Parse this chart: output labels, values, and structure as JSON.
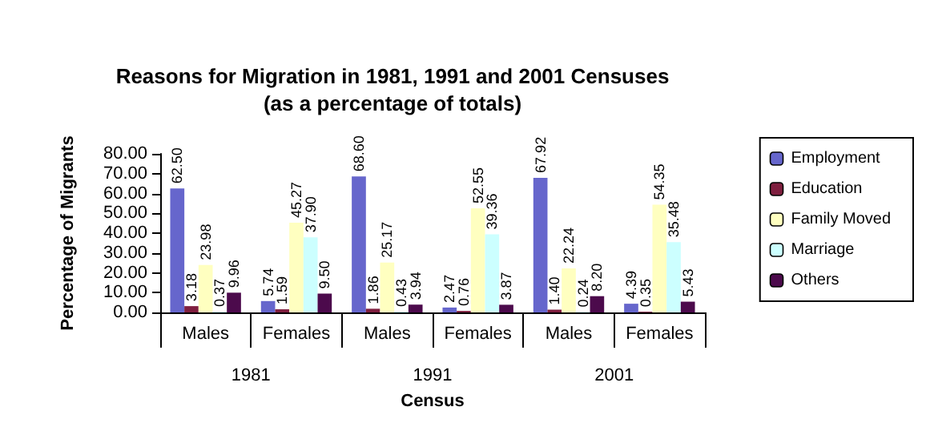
{
  "chart_data": {
    "type": "bar",
    "title": "Reasons for Migration in 1981, 1991 and 2001 Censuses",
    "subtitle": "(as a percentage of totals)",
    "xlabel": "Census",
    "ylabel": "Percentage of Migrants",
    "categories": [
      "Males",
      "Females",
      "Males",
      "Females",
      "Males",
      "Females"
    ],
    "annotations": [
      "1981",
      "1991",
      "2001"
    ],
    "series": [
      {
        "name": "Employment",
        "color": "#6666cc",
        "values": [
          62.5,
          5.74,
          68.6,
          2.47,
          67.92,
          4.39
        ],
        "value_labels": [
          "62.50",
          "5.74",
          "68.60",
          "2.47",
          "67.92",
          "4.39"
        ]
      },
      {
        "name": "Education",
        "color": "#7f1f3f",
        "values": [
          3.18,
          1.59,
          1.86,
          0.76,
          1.4,
          0.35
        ],
        "value_labels": [
          "3.18",
          "1.59",
          "1.86",
          "0.76",
          "1.40",
          "0.35"
        ]
      },
      {
        "name": "Family Moved",
        "color": "#ffffc0",
        "values": [
          23.98,
          45.27,
          25.17,
          52.55,
          22.24,
          54.35
        ],
        "value_labels": [
          "23.98",
          "45.27",
          "25.17",
          "52.55",
          "22.24",
          "54.35"
        ]
      },
      {
        "name": "Marriage",
        "color": "#ccffff",
        "values": [
          0.37,
          37.9,
          0.43,
          39.36,
          0.24,
          35.48
        ],
        "value_labels": [
          "0.37",
          "37.90",
          "0.43",
          "39.36",
          "0.24",
          "35.48"
        ]
      },
      {
        "name": "Others",
        "color": "#4c0a4c",
        "values": [
          9.96,
          9.5,
          3.94,
          3.87,
          8.2,
          5.43
        ],
        "value_labels": [
          "9.96",
          "9.50",
          "3.94",
          "3.87",
          "8.20",
          "5.43"
        ]
      }
    ],
    "ylim": [
      0,
      80
    ],
    "yticks": [
      {
        "value": 0,
        "label": "0.00"
      },
      {
        "value": 10,
        "label": "10.00"
      },
      {
        "value": 20,
        "label": "20.00"
      },
      {
        "value": 30,
        "label": "30.00"
      },
      {
        "value": 40,
        "label": "40.00"
      },
      {
        "value": 50,
        "label": "50.00"
      },
      {
        "value": 60,
        "label": "60.00"
      },
      {
        "value": 70,
        "label": "70.00"
      },
      {
        "value": 80,
        "label": "80.00"
      }
    ],
    "grid": false,
    "legend": "right"
  }
}
